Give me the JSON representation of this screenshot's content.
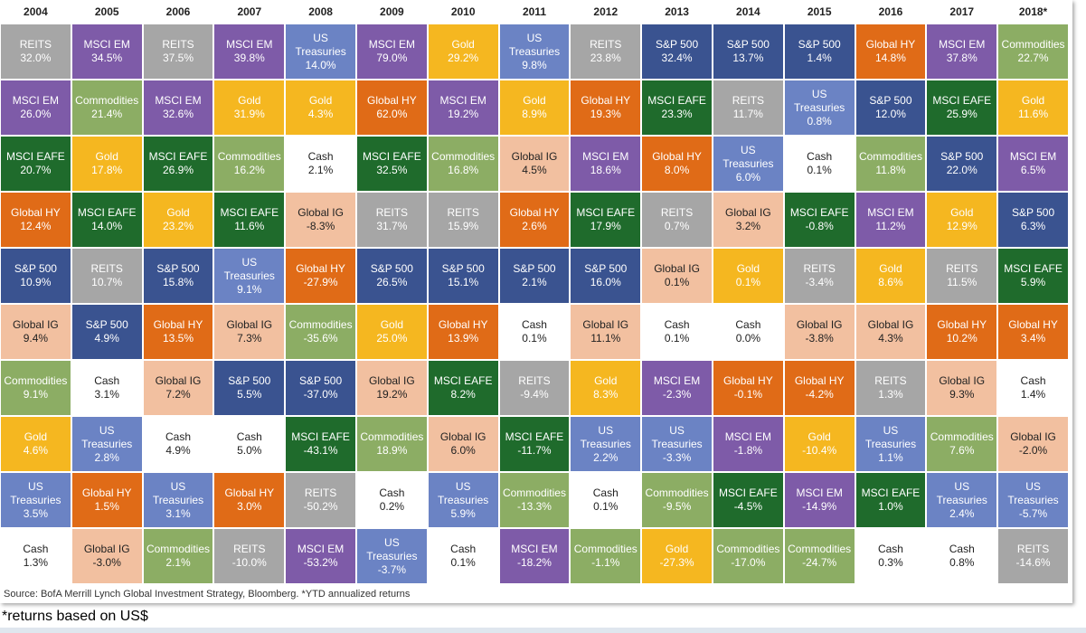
{
  "colors": {
    "REITS": "#a6a6a6",
    "MSCI EM": "#7e5ba8",
    "Commodities": "#8cad64",
    "Gold": "#f5b720",
    "Global HY": "#e06b17",
    "MSCI EAFE": "#1f6b2c",
    "S&P 500": "#3a5390",
    "Global IG": "#f2c0a0",
    "US Treasuries": "#6b83c4",
    "Cash": "#ffffff"
  },
  "chart_data": {
    "type": "table",
    "columns": [
      {
        "year": "2004",
        "cells": [
          {
            "n": "REITS",
            "v": "32.0%"
          },
          {
            "n": "MSCI EM",
            "v": "26.0%"
          },
          {
            "n": "MSCI EAFE",
            "v": "20.7%"
          },
          {
            "n": "Global HY",
            "v": "12.4%"
          },
          {
            "n": "S&P 500",
            "v": "10.9%"
          },
          {
            "n": "Global IG",
            "v": "9.4%"
          },
          {
            "n": "Commodities",
            "v": "9.1%"
          },
          {
            "n": "Gold",
            "v": "4.6%"
          },
          {
            "n": "US Treasuries",
            "v": "3.5%"
          },
          {
            "n": "Cash",
            "v": "1.3%"
          }
        ]
      },
      {
        "year": "2005",
        "cells": [
          {
            "n": "MSCI EM",
            "v": "34.5%"
          },
          {
            "n": "Commodities",
            "v": "21.4%"
          },
          {
            "n": "Gold",
            "v": "17.8%"
          },
          {
            "n": "MSCI EAFE",
            "v": "14.0%"
          },
          {
            "n": "REITS",
            "v": "10.7%"
          },
          {
            "n": "S&P 500",
            "v": "4.9%"
          },
          {
            "n": "Cash",
            "v": "3.1%"
          },
          {
            "n": "US Treasuries",
            "v": "2.8%"
          },
          {
            "n": "Global HY",
            "v": "1.5%"
          },
          {
            "n": "Global IG",
            "v": "-3.0%"
          }
        ]
      },
      {
        "year": "2006",
        "cells": [
          {
            "n": "REITS",
            "v": "37.5%"
          },
          {
            "n": "MSCI EM",
            "v": "32.6%"
          },
          {
            "n": "MSCI EAFE",
            "v": "26.9%"
          },
          {
            "n": "Gold",
            "v": "23.2%"
          },
          {
            "n": "S&P 500",
            "v": "15.8%"
          },
          {
            "n": "Global HY",
            "v": "13.5%"
          },
          {
            "n": "Global IG",
            "v": "7.2%"
          },
          {
            "n": "Cash",
            "v": "4.9%"
          },
          {
            "n": "US Treasuries",
            "v": "3.1%"
          },
          {
            "n": "Commodities",
            "v": "2.1%"
          }
        ]
      },
      {
        "year": "2007",
        "cells": [
          {
            "n": "MSCI EM",
            "v": "39.8%"
          },
          {
            "n": "Gold",
            "v": "31.9%"
          },
          {
            "n": "Commodities",
            "v": "16.2%"
          },
          {
            "n": "MSCI EAFE",
            "v": "11.6%"
          },
          {
            "n": "US Treasuries",
            "v": "9.1%"
          },
          {
            "n": "Global IG",
            "v": "7.3%"
          },
          {
            "n": "S&P 500",
            "v": "5.5%"
          },
          {
            "n": "Cash",
            "v": "5.0%"
          },
          {
            "n": "Global HY",
            "v": "3.0%"
          },
          {
            "n": "REITS",
            "v": "-10.0%"
          }
        ]
      },
      {
        "year": "2008",
        "cells": [
          {
            "n": "US Treasuries",
            "v": "14.0%"
          },
          {
            "n": "Gold",
            "v": "4.3%"
          },
          {
            "n": "Cash",
            "v": "2.1%"
          },
          {
            "n": "Global IG",
            "v": "-8.3%"
          },
          {
            "n": "Global HY",
            "v": "-27.9%"
          },
          {
            "n": "Commodities",
            "v": "-35.6%"
          },
          {
            "n": "S&P 500",
            "v": "-37.0%"
          },
          {
            "n": "MSCI EAFE",
            "v": "-43.1%"
          },
          {
            "n": "REITS",
            "v": "-50.2%"
          },
          {
            "n": "MSCI EM",
            "v": "-53.2%"
          }
        ]
      },
      {
        "year": "2009",
        "cells": [
          {
            "n": "MSCI EM",
            "v": "79.0%"
          },
          {
            "n": "Global HY",
            "v": "62.0%"
          },
          {
            "n": "MSCI EAFE",
            "v": "32.5%"
          },
          {
            "n": "REITS",
            "v": "31.7%"
          },
          {
            "n": "S&P 500",
            "v": "26.5%"
          },
          {
            "n": "Gold",
            "v": "25.0%"
          },
          {
            "n": "Global IG",
            "v": "19.2%"
          },
          {
            "n": "Commodities",
            "v": "18.9%"
          },
          {
            "n": "Cash",
            "v": "0.2%"
          },
          {
            "n": "US Treasuries",
            "v": "-3.7%"
          }
        ]
      },
      {
        "year": "2010",
        "cells": [
          {
            "n": "Gold",
            "v": "29.2%"
          },
          {
            "n": "MSCI EM",
            "v": "19.2%"
          },
          {
            "n": "Commodities",
            "v": "16.8%"
          },
          {
            "n": "REITS",
            "v": "15.9%"
          },
          {
            "n": "S&P 500",
            "v": "15.1%"
          },
          {
            "n": "Global HY",
            "v": "13.9%"
          },
          {
            "n": "MSCI EAFE",
            "v": "8.2%"
          },
          {
            "n": "Global IG",
            "v": "6.0%"
          },
          {
            "n": "US Treasuries",
            "v": "5.9%"
          },
          {
            "n": "Cash",
            "v": "0.1%"
          }
        ]
      },
      {
        "year": "2011",
        "cells": [
          {
            "n": "US Treasuries",
            "v": "9.8%"
          },
          {
            "n": "Gold",
            "v": "8.9%"
          },
          {
            "n": "Global IG",
            "v": "4.5%"
          },
          {
            "n": "Global HY",
            "v": "2.6%"
          },
          {
            "n": "S&P 500",
            "v": "2.1%"
          },
          {
            "n": "Cash",
            "v": "0.1%"
          },
          {
            "n": "REITS",
            "v": "-9.4%"
          },
          {
            "n": "MSCI EAFE",
            "v": "-11.7%"
          },
          {
            "n": "Commodities",
            "v": "-13.3%"
          },
          {
            "n": "MSCI EM",
            "v": "-18.2%"
          }
        ]
      },
      {
        "year": "2012",
        "cells": [
          {
            "n": "REITS",
            "v": "23.8%"
          },
          {
            "n": "Global HY",
            "v": "19.3%"
          },
          {
            "n": "MSCI EM",
            "v": "18.6%"
          },
          {
            "n": "MSCI EAFE",
            "v": "17.9%"
          },
          {
            "n": "S&P 500",
            "v": "16.0%"
          },
          {
            "n": "Global IG",
            "v": "11.1%"
          },
          {
            "n": "Gold",
            "v": "8.3%"
          },
          {
            "n": "US Treasuries",
            "v": "2.2%"
          },
          {
            "n": "Cash",
            "v": "0.1%"
          },
          {
            "n": "Commodities",
            "v": "-1.1%"
          }
        ]
      },
      {
        "year": "2013",
        "cells": [
          {
            "n": "S&P 500",
            "v": "32.4%"
          },
          {
            "n": "MSCI EAFE",
            "v": "23.3%"
          },
          {
            "n": "Global HY",
            "v": "8.0%"
          },
          {
            "n": "REITS",
            "v": "0.7%"
          },
          {
            "n": "Global IG",
            "v": "0.1%"
          },
          {
            "n": "Cash",
            "v": "0.1%"
          },
          {
            "n": "MSCI EM",
            "v": "-2.3%"
          },
          {
            "n": "US Treasuries",
            "v": "-3.3%"
          },
          {
            "n": "Commodities",
            "v": "-9.5%"
          },
          {
            "n": "Gold",
            "v": "-27.3%"
          }
        ]
      },
      {
        "year": "2014",
        "cells": [
          {
            "n": "S&P 500",
            "v": "13.7%"
          },
          {
            "n": "REITS",
            "v": "11.7%"
          },
          {
            "n": "US Treasuries",
            "v": "6.0%"
          },
          {
            "n": "Global IG",
            "v": "3.2%"
          },
          {
            "n": "Gold",
            "v": "0.1%"
          },
          {
            "n": "Cash",
            "v": "0.0%"
          },
          {
            "n": "Global HY",
            "v": "-0.1%"
          },
          {
            "n": "MSCI EM",
            "v": "-1.8%"
          },
          {
            "n": "MSCI EAFE",
            "v": "-4.5%"
          },
          {
            "n": "Commodities",
            "v": "-17.0%"
          }
        ]
      },
      {
        "year": "2015",
        "cells": [
          {
            "n": "S&P 500",
            "v": "1.4%"
          },
          {
            "n": "US Treasuries",
            "v": "0.8%"
          },
          {
            "n": "Cash",
            "v": "0.1%"
          },
          {
            "n": "MSCI EAFE",
            "v": "-0.8%"
          },
          {
            "n": "REITS",
            "v": "-3.4%"
          },
          {
            "n": "Global IG",
            "v": "-3.8%"
          },
          {
            "n": "Global HY",
            "v": "-4.2%"
          },
          {
            "n": "Gold",
            "v": "-10.4%"
          },
          {
            "n": "MSCI EM",
            "v": "-14.9%"
          },
          {
            "n": "Commodities",
            "v": "-24.7%"
          }
        ]
      },
      {
        "year": "2016",
        "cells": [
          {
            "n": "Global HY",
            "v": "14.8%"
          },
          {
            "n": "S&P 500",
            "v": "12.0%"
          },
          {
            "n": "Commodities",
            "v": "11.8%"
          },
          {
            "n": "MSCI EM",
            "v": "11.2%"
          },
          {
            "n": "Gold",
            "v": "8.6%"
          },
          {
            "n": "Global IG",
            "v": "4.3%"
          },
          {
            "n": "REITS",
            "v": "1.3%"
          },
          {
            "n": "US Treasuries",
            "v": "1.1%"
          },
          {
            "n": "MSCI EAFE",
            "v": "1.0%"
          },
          {
            "n": "Cash",
            "v": "0.3%"
          }
        ]
      },
      {
        "year": "2017",
        "cells": [
          {
            "n": "MSCI EM",
            "v": "37.8%"
          },
          {
            "n": "MSCI EAFE",
            "v": "25.9%"
          },
          {
            "n": "S&P 500",
            "v": "22.0%"
          },
          {
            "n": "Gold",
            "v": "12.9%"
          },
          {
            "n": "REITS",
            "v": "11.5%"
          },
          {
            "n": "Global HY",
            "v": "10.2%"
          },
          {
            "n": "Global IG",
            "v": "9.3%"
          },
          {
            "n": "Commodities",
            "v": "7.6%"
          },
          {
            "n": "US Treasuries",
            "v": "2.4%"
          },
          {
            "n": "Cash",
            "v": "0.8%"
          }
        ]
      },
      {
        "year": "2018*",
        "cells": [
          {
            "n": "Commodities",
            "v": "22.7%"
          },
          {
            "n": "Gold",
            "v": "11.6%"
          },
          {
            "n": "MSCI EM",
            "v": "6.5%"
          },
          {
            "n": "S&P 500",
            "v": "6.3%"
          },
          {
            "n": "MSCI EAFE",
            "v": "5.9%"
          },
          {
            "n": "Global HY",
            "v": "3.4%"
          },
          {
            "n": "Cash",
            "v": "1.4%"
          },
          {
            "n": "Global IG",
            "v": "-2.0%"
          },
          {
            "n": "US Treasuries",
            "v": "-5.7%"
          },
          {
            "n": "REITS",
            "v": "-14.6%"
          }
        ]
      }
    ]
  },
  "source": "Source: BofA Merrill Lynch Global Investment Strategy, Bloomberg. *YTD annualized returns",
  "note": "*returns based on US$"
}
